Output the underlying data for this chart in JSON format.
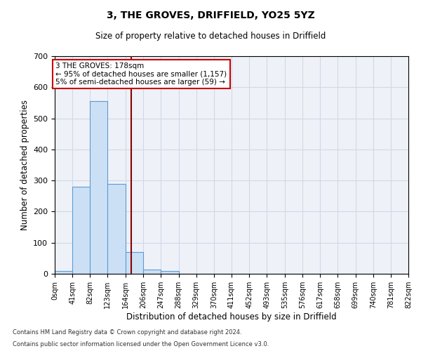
{
  "title1": "3, THE GROVES, DRIFFIELD, YO25 5YZ",
  "title2": "Size of property relative to detached houses in Driffield",
  "xlabel": "Distribution of detached houses by size in Driffield",
  "ylabel": "Number of detached properties",
  "bar_values": [
    8,
    280,
    555,
    290,
    70,
    13,
    8,
    0,
    0,
    0,
    0,
    0,
    0,
    0,
    0,
    0,
    0,
    0,
    0,
    0
  ],
  "bin_edges": [
    0,
    41,
    82,
    123,
    164,
    206,
    247,
    288,
    329,
    370,
    411,
    452,
    493,
    535,
    576,
    617,
    658,
    699,
    740,
    781,
    822
  ],
  "bar_color": "#cce0f5",
  "bar_edge_color": "#5b9bd5",
  "grid_color": "#d0d8e8",
  "background_color": "#eef2f8",
  "property_size": 178,
  "red_line_color": "#8b0000",
  "annotation_text": "3 THE GROVES: 178sqm\n← 95% of detached houses are smaller (1,157)\n5% of semi-detached houses are larger (59) →",
  "annotation_box_color": "#ffffff",
  "annotation_box_edge": "#cc0000",
  "ylim": [
    0,
    700
  ],
  "yticks": [
    0,
    100,
    200,
    300,
    400,
    500,
    600,
    700
  ],
  "footnote1": "Contains HM Land Registry data © Crown copyright and database right 2024.",
  "footnote2": "Contains public sector information licensed under the Open Government Licence v3.0."
}
